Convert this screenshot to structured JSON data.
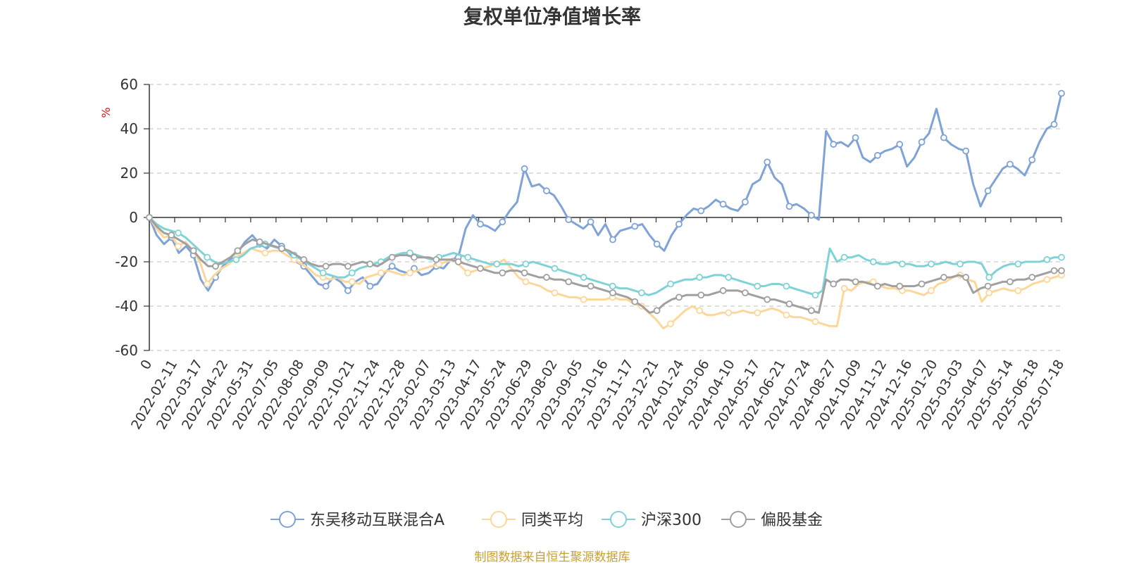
{
  "chart_data": {
    "type": "line",
    "title": "复权单位净值增长率",
    "y_unit": "%",
    "ylim": [
      -60,
      60
    ],
    "y_ticks": [
      60,
      40,
      20,
      0,
      -20,
      -40,
      -60
    ],
    "x_start_label": "0",
    "x_tick_labels": [
      "2022-02-11",
      "2022-03-17",
      "2022-04-22",
      "2022-05-31",
      "2022-07-05",
      "2022-08-08",
      "2022-09-09",
      "2022-10-21",
      "2022-11-24",
      "2022-12-28",
      "2023-02-07",
      "2023-03-13",
      "2023-04-17",
      "2023-05-24",
      "2023-06-29",
      "2023-08-02",
      "2023-09-05",
      "2023-10-16",
      "2023-11-17",
      "2023-12-21",
      "2024-01-24",
      "2024-03-06",
      "2024-04-10",
      "2024-05-17",
      "2024-06-21",
      "2024-07-24",
      "2024-08-27",
      "2024-10-09",
      "2024-11-12",
      "2024-12-16",
      "2025-01-20",
      "2025-03-03",
      "2025-04-07",
      "2025-05-14",
      "2025-06-18",
      "2025-07-18"
    ],
    "grid": true,
    "legend_position": "bottom",
    "series": [
      {
        "name": "东吴移动互联混合A",
        "color": "#7fa3d6",
        "values": [
          0,
          -8,
          -12,
          -9,
          -16,
          -13,
          -17,
          -28,
          -33,
          -27,
          -22,
          -19,
          -16,
          -11,
          -8,
          -12,
          -14,
          -10,
          -13,
          -16,
          -20,
          -22,
          -26,
          -30,
          -31,
          -27,
          -29,
          -33,
          -29,
          -27,
          -31,
          -30,
          -25,
          -22,
          -24,
          -25,
          -23,
          -26,
          -25,
          -22,
          -23,
          -19,
          -18,
          -5,
          1,
          -3,
          -4,
          -6,
          -2,
          3,
          7,
          22,
          14,
          15,
          12,
          10,
          5,
          -1,
          -3,
          -5,
          -2,
          -8,
          -3,
          -10,
          -6,
          -5,
          -4,
          -3,
          -8,
          -12,
          -15,
          -8,
          -3,
          1,
          4,
          3,
          5,
          8,
          6,
          4,
          3,
          7,
          15,
          17,
          25,
          18,
          15,
          5,
          6,
          4,
          1,
          -1,
          39,
          33,
          34,
          32,
          36,
          27,
          25,
          28,
          30,
          31,
          33,
          23,
          27,
          34,
          38,
          49,
          36,
          33,
          31,
          30,
          15,
          5,
          12,
          17,
          22,
          24,
          22,
          19,
          26,
          34,
          40,
          42,
          56
        ]
      },
      {
        "name": "同类平均",
        "color": "#fdd79a",
        "values": [
          0,
          -5,
          -9,
          -8,
          -13,
          -11,
          -15,
          -20,
          -30,
          -26,
          -23,
          -21,
          -18,
          -16,
          -14,
          -15,
          -16,
          -15,
          -15,
          -17,
          -19,
          -21,
          -23,
          -26,
          -27,
          -28,
          -27,
          -29,
          -29,
          -30,
          -27,
          -26,
          -25,
          -24,
          -25,
          -26,
          -25,
          -24,
          -23,
          -22,
          -21,
          -20,
          -19,
          -22,
          -25,
          -24,
          -23,
          -22,
          -21,
          -19,
          -23,
          -27,
          -29,
          -30,
          -31,
          -33,
          -34,
          -35,
          -36,
          -36,
          -37,
          -37,
          -37,
          -37,
          -36,
          -37,
          -37,
          -39,
          -40,
          -43,
          -46,
          -50,
          -48,
          -45,
          -42,
          -40,
          -42,
          -44,
          -44,
          -43,
          -43,
          -43,
          -42,
          -43,
          -43,
          -42,
          -41,
          -42,
          -44,
          -45,
          -45,
          -46,
          -47,
          -48,
          -49,
          -49,
          -32,
          -33,
          -30,
          -29,
          -29,
          -31,
          -32,
          -32,
          -33,
          -33,
          -34,
          -35,
          -33,
          -30,
          -29,
          -27,
          -26,
          -28,
          -29,
          -38,
          -34,
          -33,
          -32,
          -33,
          -33,
          -32,
          -30,
          -29,
          -28,
          -27,
          -26
        ]
      },
      {
        "name": "沪深300",
        "color": "#7fd3d6",
        "values": [
          0,
          -3,
          -5,
          -6,
          -7,
          -9,
          -12,
          -15,
          -18,
          -20,
          -21,
          -20,
          -19,
          -17,
          -14,
          -13,
          -12,
          -13,
          -14,
          -15,
          -17,
          -19,
          -21,
          -23,
          -25,
          -26,
          -27,
          -27,
          -25,
          -23,
          -22,
          -21,
          -20,
          -18,
          -17,
          -16,
          -16,
          -17,
          -18,
          -19,
          -18,
          -17,
          -16,
          -17,
          -18,
          -19,
          -20,
          -21,
          -21,
          -21,
          -21,
          -22,
          -21,
          -20,
          -21,
          -22,
          -23,
          -24,
          -25,
          -26,
          -27,
          -28,
          -29,
          -30,
          -31,
          -32,
          -32,
          -33,
          -34,
          -35,
          -34,
          -32,
          -30,
          -29,
          -28,
          -28,
          -27,
          -27,
          -26,
          -26,
          -27,
          -28,
          -29,
          -30,
          -31,
          -31,
          -30,
          -30,
          -31,
          -32,
          -33,
          -34,
          -35,
          -33,
          -14,
          -20,
          -18,
          -18,
          -17,
          -19,
          -20,
          -21,
          -21,
          -20,
          -21,
          -21,
          -22,
          -22,
          -21,
          -21,
          -20,
          -21,
          -21,
          -20,
          -20,
          -21,
          -27,
          -24,
          -22,
          -21,
          -21,
          -20,
          -20,
          -20,
          -19,
          -18,
          -18
        ]
      },
      {
        "name": "偏股基金",
        "color": "#a0a0a0",
        "values": [
          0,
          -4,
          -7,
          -8,
          -10,
          -12,
          -15,
          -19,
          -22,
          -22,
          -20,
          -18,
          -15,
          -12,
          -10,
          -11,
          -12,
          -13,
          -14,
          -15,
          -17,
          -19,
          -21,
          -22,
          -22,
          -21,
          -21,
          -22,
          -21,
          -20,
          -21,
          -22,
          -20,
          -18,
          -17,
          -17,
          -18,
          -18,
          -18,
          -19,
          -19,
          -19,
          -20,
          -21,
          -22,
          -23,
          -24,
          -25,
          -25,
          -24,
          -24,
          -25,
          -26,
          -27,
          -27,
          -28,
          -28,
          -29,
          -30,
          -31,
          -31,
          -32,
          -33,
          -34,
          -35,
          -36,
          -38,
          -40,
          -43,
          -42,
          -39,
          -37,
          -36,
          -35,
          -35,
          -35,
          -35,
          -34,
          -33,
          -33,
          -33,
          -34,
          -35,
          -36,
          -37,
          -37,
          -38,
          -39,
          -40,
          -41,
          -42,
          -43,
          -28,
          -30,
          -28,
          -28,
          -29,
          -29,
          -30,
          -31,
          -30,
          -31,
          -31,
          -31,
          -31,
          -30,
          -29,
          -28,
          -27,
          -27,
          -26,
          -27,
          -34,
          -32,
          -31,
          -30,
          -29,
          -29,
          -28,
          -28,
          -27,
          -26,
          -25,
          -24,
          -24
        ]
      }
    ]
  },
  "source_note": "制图数据来自恒生聚源数据库"
}
